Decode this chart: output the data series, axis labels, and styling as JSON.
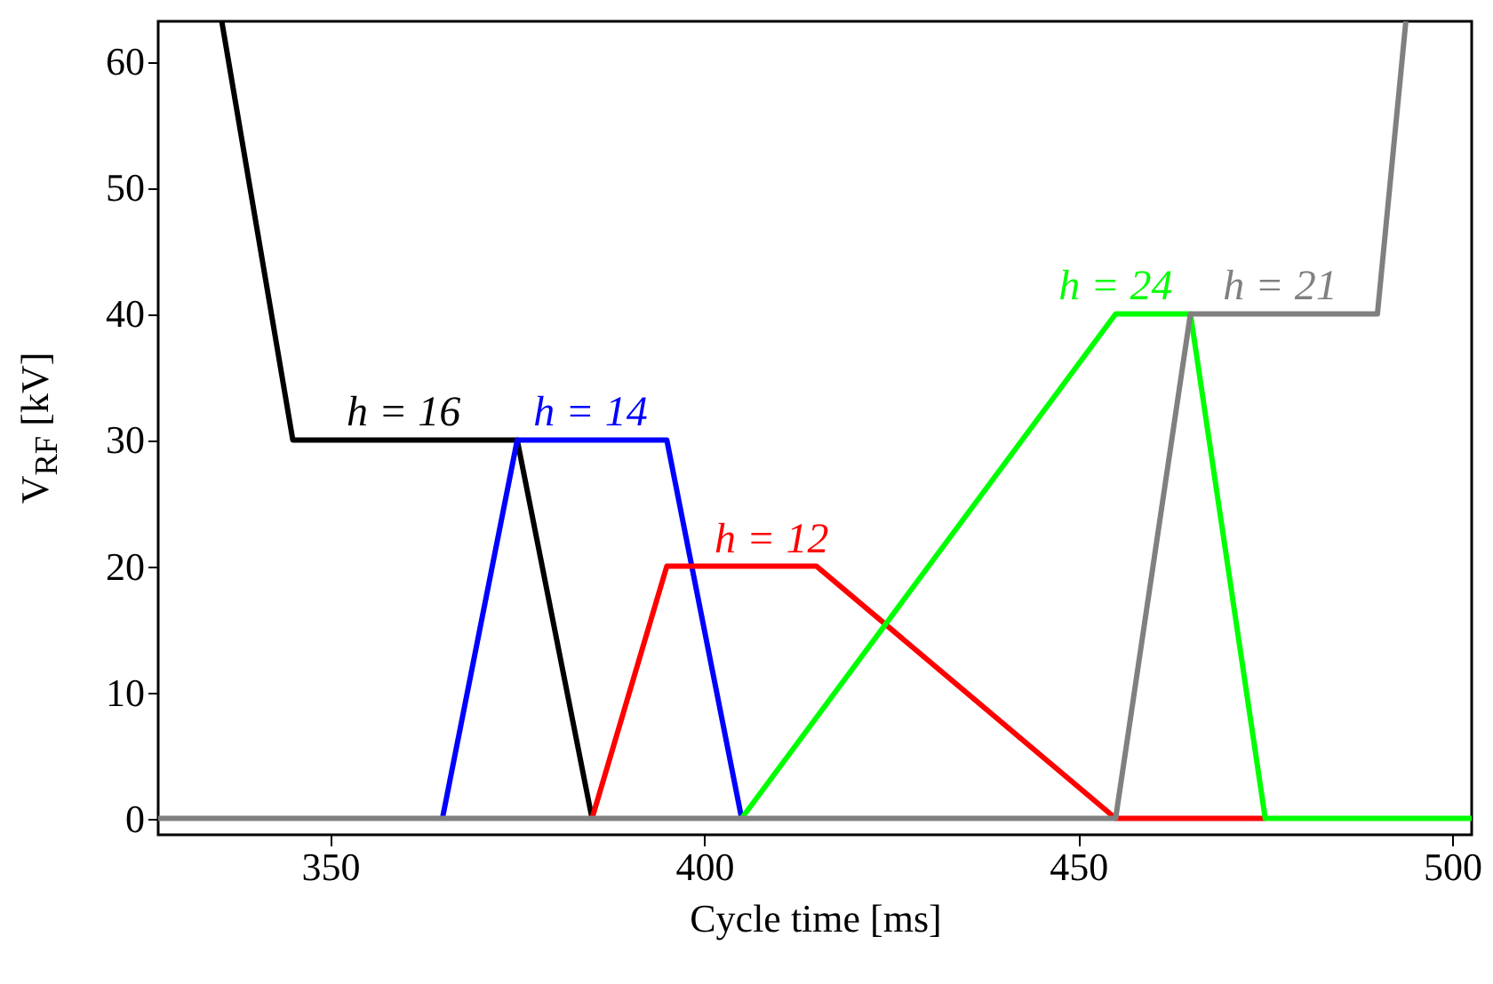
{
  "chart_data": {
    "type": "line",
    "xlabel": "Cycle time [ms]",
    "ylabel": "V$_{RF}$ [kV]",
    "xlim": [
      327,
      502.6
    ],
    "ylim": [
      -1.3,
      63.2
    ],
    "xticks": [
      350,
      400,
      450,
      500
    ],
    "yticks": [
      0,
      10,
      20,
      30,
      40,
      50,
      60
    ],
    "grid": false,
    "series": [
      {
        "color": "#000000",
        "x": [
          335.5,
          345,
          375,
          385
        ],
        "values": [
          63.2,
          30,
          30,
          0
        ]
      },
      {
        "color": "#0000ff",
        "x": [
          365,
          375,
          395,
          405
        ],
        "values": [
          0,
          30,
          30,
          0
        ]
      },
      {
        "color": "#ff0000",
        "x": [
          385,
          395,
          415,
          455,
          475
        ],
        "values": [
          0,
          20,
          20,
          0,
          0
        ]
      },
      {
        "color": "#00ff00",
        "x": [
          405,
          455,
          465,
          475,
          502.6
        ],
        "values": [
          0,
          40,
          40,
          0,
          0
        ]
      },
      {
        "color": "#808080",
        "x": [
          327,
          455,
          465,
          490,
          493.8
        ],
        "values": [
          0,
          0,
          40,
          40,
          63.2
        ]
      }
    ],
    "annotations": [
      {
        "text": "h = 16",
        "x": 359.8,
        "y": 30
      },
      {
        "text": "h = 14",
        "x": 384.8,
        "y": 30
      },
      {
        "text": "h = 12",
        "x": 409,
        "y": 20
      },
      {
        "text": "h = 24",
        "x": 455,
        "y": 40
      },
      {
        "text": "h = 21",
        "x": 477,
        "y": 40
      }
    ]
  }
}
